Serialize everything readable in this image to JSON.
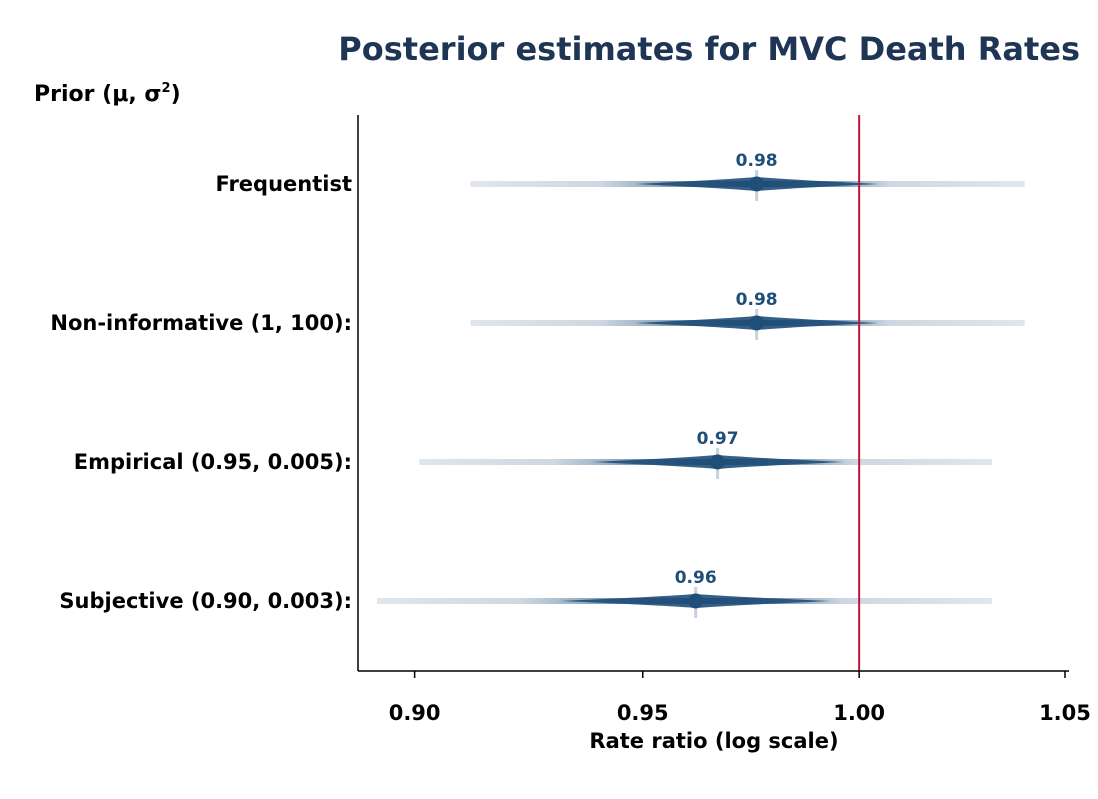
{
  "chart_data": {
    "type": "forest",
    "title": "Posterior estimates for MVC Death Rates",
    "column_header": {
      "base": "Prior (μ, σ",
      "superscript": "2",
      "close": ")"
    },
    "xlabel": "Rate ratio (log scale)",
    "xlim": [
      0.888,
      1.051
    ],
    "x_scale": "log",
    "xticks": [
      {
        "value": 0.9,
        "label": "0.90"
      },
      {
        "value": 0.95,
        "label": "0.95"
      },
      {
        "value": 1.0,
        "label": "1.00"
      },
      {
        "value": 1.05,
        "label": "1.05"
      }
    ],
    "reference_line": {
      "value": 1.0,
      "color": "#c0143c"
    },
    "series_color": "#1f4e79",
    "rows": [
      {
        "label": "Frequentist",
        "estimate": 0.976,
        "estimate_label": "0.98",
        "range": [
          0.912,
          1.04
        ]
      },
      {
        "label": "Non-informative (1, 100):",
        "estimate": 0.976,
        "estimate_label": "0.98",
        "range": [
          0.912,
          1.04
        ]
      },
      {
        "label": "Empirical (0.95, 0.005):",
        "estimate": 0.967,
        "estimate_label": "0.97",
        "range": [
          0.901,
          1.032
        ]
      },
      {
        "label": "Subjective (0.90, 0.003):",
        "estimate": 0.962,
        "estimate_label": "0.96",
        "range": [
          0.892,
          1.032
        ]
      }
    ],
    "title_color": "#1f3556",
    "grid": false
  }
}
